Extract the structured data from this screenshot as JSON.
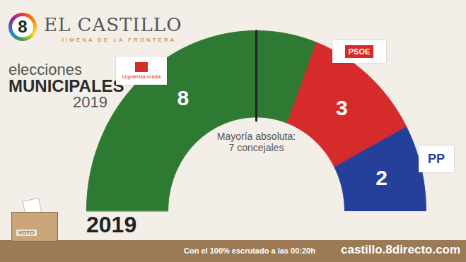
{
  "chart_data": {
    "type": "semicircle",
    "brand": {
      "logo": "8",
      "name": "EL CASTILLO",
      "place": "JIMENA DE LA FRONTERA"
    },
    "title": [
      "elecciones",
      "MUNICIPALES",
      "2019"
    ],
    "categories": [
      "izquierda unida",
      "PSOE",
      "PP"
    ],
    "values": [
      8,
      3,
      2
    ],
    "colors": [
      "#2f7a33",
      "#d62b2b",
      "#24409a"
    ],
    "data_labels": true,
    "annotation": {
      "text": [
        "Mayoría absoluta:",
        "7 concejales"
      ],
      "value": 6.5
    },
    "year_label": "2019",
    "ballot_label": "VOTO",
    "footer": {
      "note": "Con el 100% escrutado a las 00:20h",
      "url": "castillo.8directo.com"
    }
  }
}
